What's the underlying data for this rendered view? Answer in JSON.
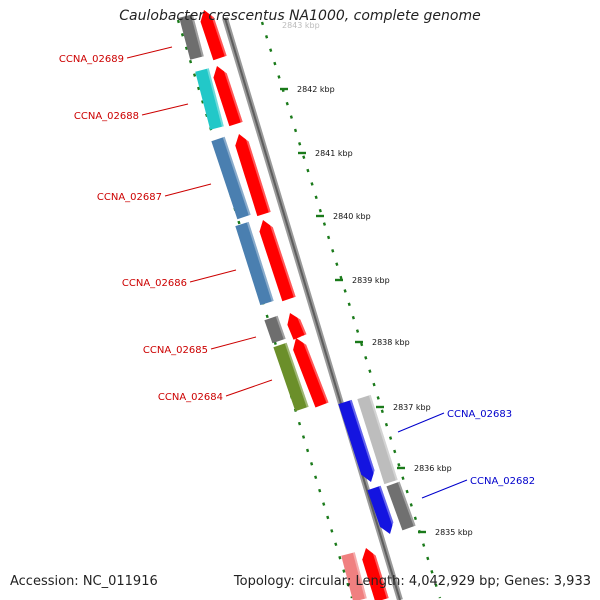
{
  "title": "Caulobacter crescentus NA1000, complete genome",
  "accession": "Accession: NC_011916",
  "summary": "Topology: circular; Length: 4,042,929 bp; Genes: 3,933",
  "partial_tick_label": "2843 kbp",
  "ticks": [
    {
      "label": "2842 kbp"
    },
    {
      "label": "2841 kbp"
    },
    {
      "label": "2840 kbp"
    },
    {
      "label": "2839 kbp"
    },
    {
      "label": "2838 kbp"
    },
    {
      "label": "2837 kbp"
    },
    {
      "label": "2836 kbp"
    },
    {
      "label": "2835 kbp"
    }
  ],
  "genes_left": [
    {
      "name": "CCNA_02689",
      "color": "#6e6e6e"
    },
    {
      "name": "CCNA_02688",
      "color": "#22c8c8"
    },
    {
      "name": "CCNA_02687",
      "color": "#4a7fb0"
    },
    {
      "name": "CCNA_02686",
      "color": "#4a7fb0"
    },
    {
      "name": "CCNA_02685",
      "color": "#6e6e6e"
    },
    {
      "name": "CCNA_02684",
      "color": "#6b8f2a"
    }
  ],
  "genes_right": [
    {
      "name": "CCNA_02683",
      "color": "#1414e0"
    },
    {
      "name": "CCNA_02682",
      "color": "#1414e0"
    }
  ],
  "colors": {
    "label_left": "#cc0000",
    "label_right": "#0000cc",
    "cds": "#ff0000",
    "cds_light": "#f08080",
    "backbone": "#888888",
    "tick": "#1a7a1a",
    "shade_light": "#bdbdbd",
    "shade_dark": "#707070"
  }
}
